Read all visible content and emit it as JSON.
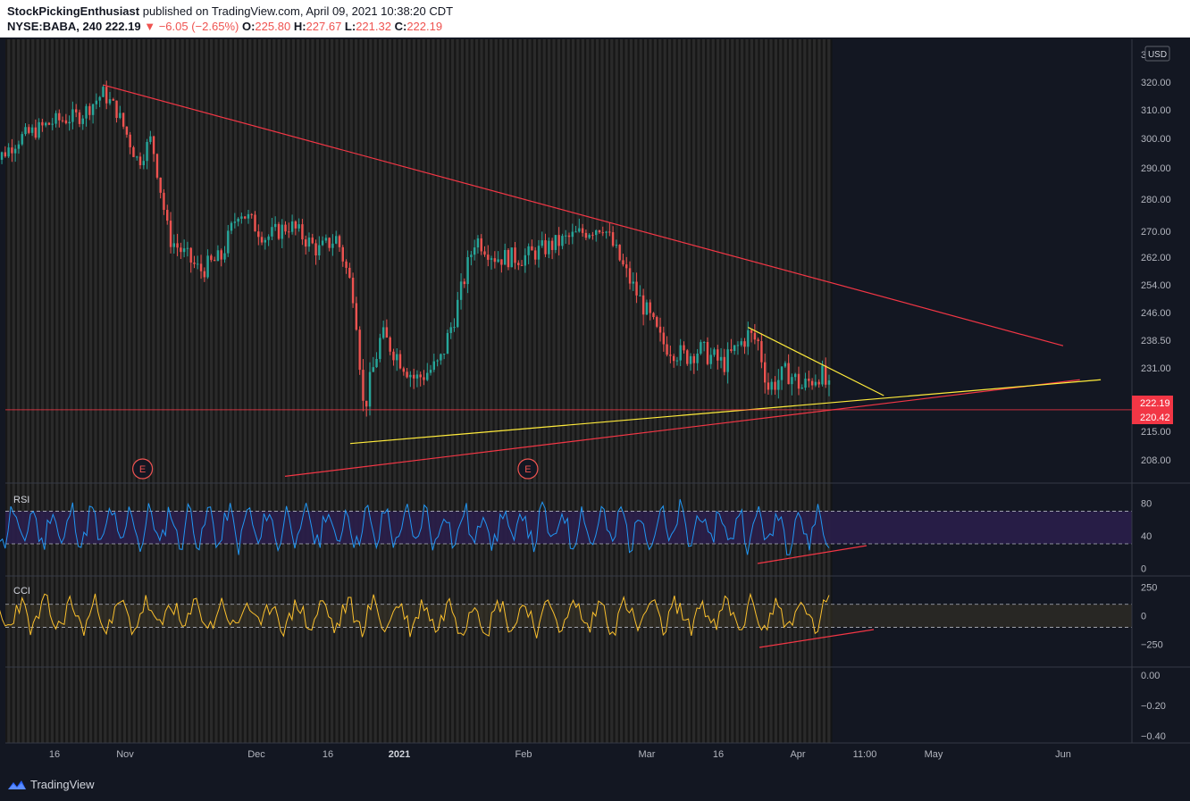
{
  "header": {
    "author": "StockPickingEnthusiast",
    "published_text": "published on TradingView.com, April 09, 2021 10:38:20 CDT",
    "symbol": "NYSE:BABA, 240",
    "last": "222.19",
    "change": "−6.05 (−2.65%)",
    "o_label": "O:",
    "o_value": "225.80",
    "h_label": "H:",
    "h_value": "227.67",
    "l_label": "L:",
    "l_value": "221.32",
    "c_label": "C:",
    "c_value": "222.19"
  },
  "colors": {
    "bg": "#131722",
    "up": "#26a69a",
    "down": "#ef5350",
    "trend_red": "#f23645",
    "trend_yellow": "#ffeb3b",
    "rsi": "#2196f3",
    "cci": "#fbc02d",
    "rsi_band": "#2a1e4a"
  },
  "chart_data": [
    {
      "type": "candlestick",
      "name": "price",
      "currency": "USD",
      "x_ticks": [
        "16",
        "Nov",
        "Dec",
        "16",
        "2021",
        "Feb",
        "Mar",
        "16",
        "Apr",
        "11:00",
        "May",
        "Jun"
      ],
      "y_ticks": [
        "320.00",
        "310.00",
        "300.00",
        "290.00",
        "280.00",
        "270.00",
        "262.00",
        "254.00",
        "246.00",
        "238.50",
        "231.00",
        "222.19",
        "220.42",
        "215.00",
        "208.00"
      ],
      "ylim": [
        203,
        332
      ],
      "price_labels": [
        {
          "text": "222.19",
          "value": 222.19,
          "color": "#f23645"
        },
        {
          "text": "220.42",
          "value": 220.42,
          "color": "#f23645"
        }
      ],
      "events": [
        {
          "label": "E",
          "x_date": "2020-11-05"
        },
        {
          "label": "E",
          "x_date": "2021-02-02"
        }
      ],
      "trendlines": [
        {
          "color": "red",
          "from": [
            "2020-10-27",
            319
          ],
          "to": [
            "2021-06-01",
            237
          ]
        },
        {
          "color": "red",
          "from": [
            "2020-12-07",
            204
          ],
          "to": [
            "2021-06-05",
            228
          ]
        },
        {
          "color": "yellow",
          "from": [
            "2020-12-21",
            212
          ],
          "to": [
            "2021-06-10",
            228
          ]
        },
        {
          "color": "yellow",
          "from": [
            "2021-03-22",
            242
          ],
          "to": [
            "2021-04-20",
            224
          ]
        }
      ]
    },
    {
      "type": "line",
      "name": "RSI",
      "title": "RSI",
      "y_ticks": [
        "80",
        "40",
        "0"
      ],
      "ylim": [
        -5,
        105
      ],
      "bands": [
        30,
        70
      ]
    },
    {
      "type": "line",
      "name": "CCI",
      "title": "CCI",
      "y_ticks": [
        "250",
        "0",
        "−250"
      ],
      "ylim": [
        -400,
        300
      ],
      "bands": [
        -100,
        100
      ]
    },
    {
      "type": "empty",
      "name": "pane4",
      "y_ticks": [
        "0.00",
        "−0.20",
        "−0.40"
      ]
    }
  ],
  "axis": {
    "partial_tick": "3",
    "usd_label": "USD"
  },
  "footer": {
    "brand": "TradingView"
  }
}
